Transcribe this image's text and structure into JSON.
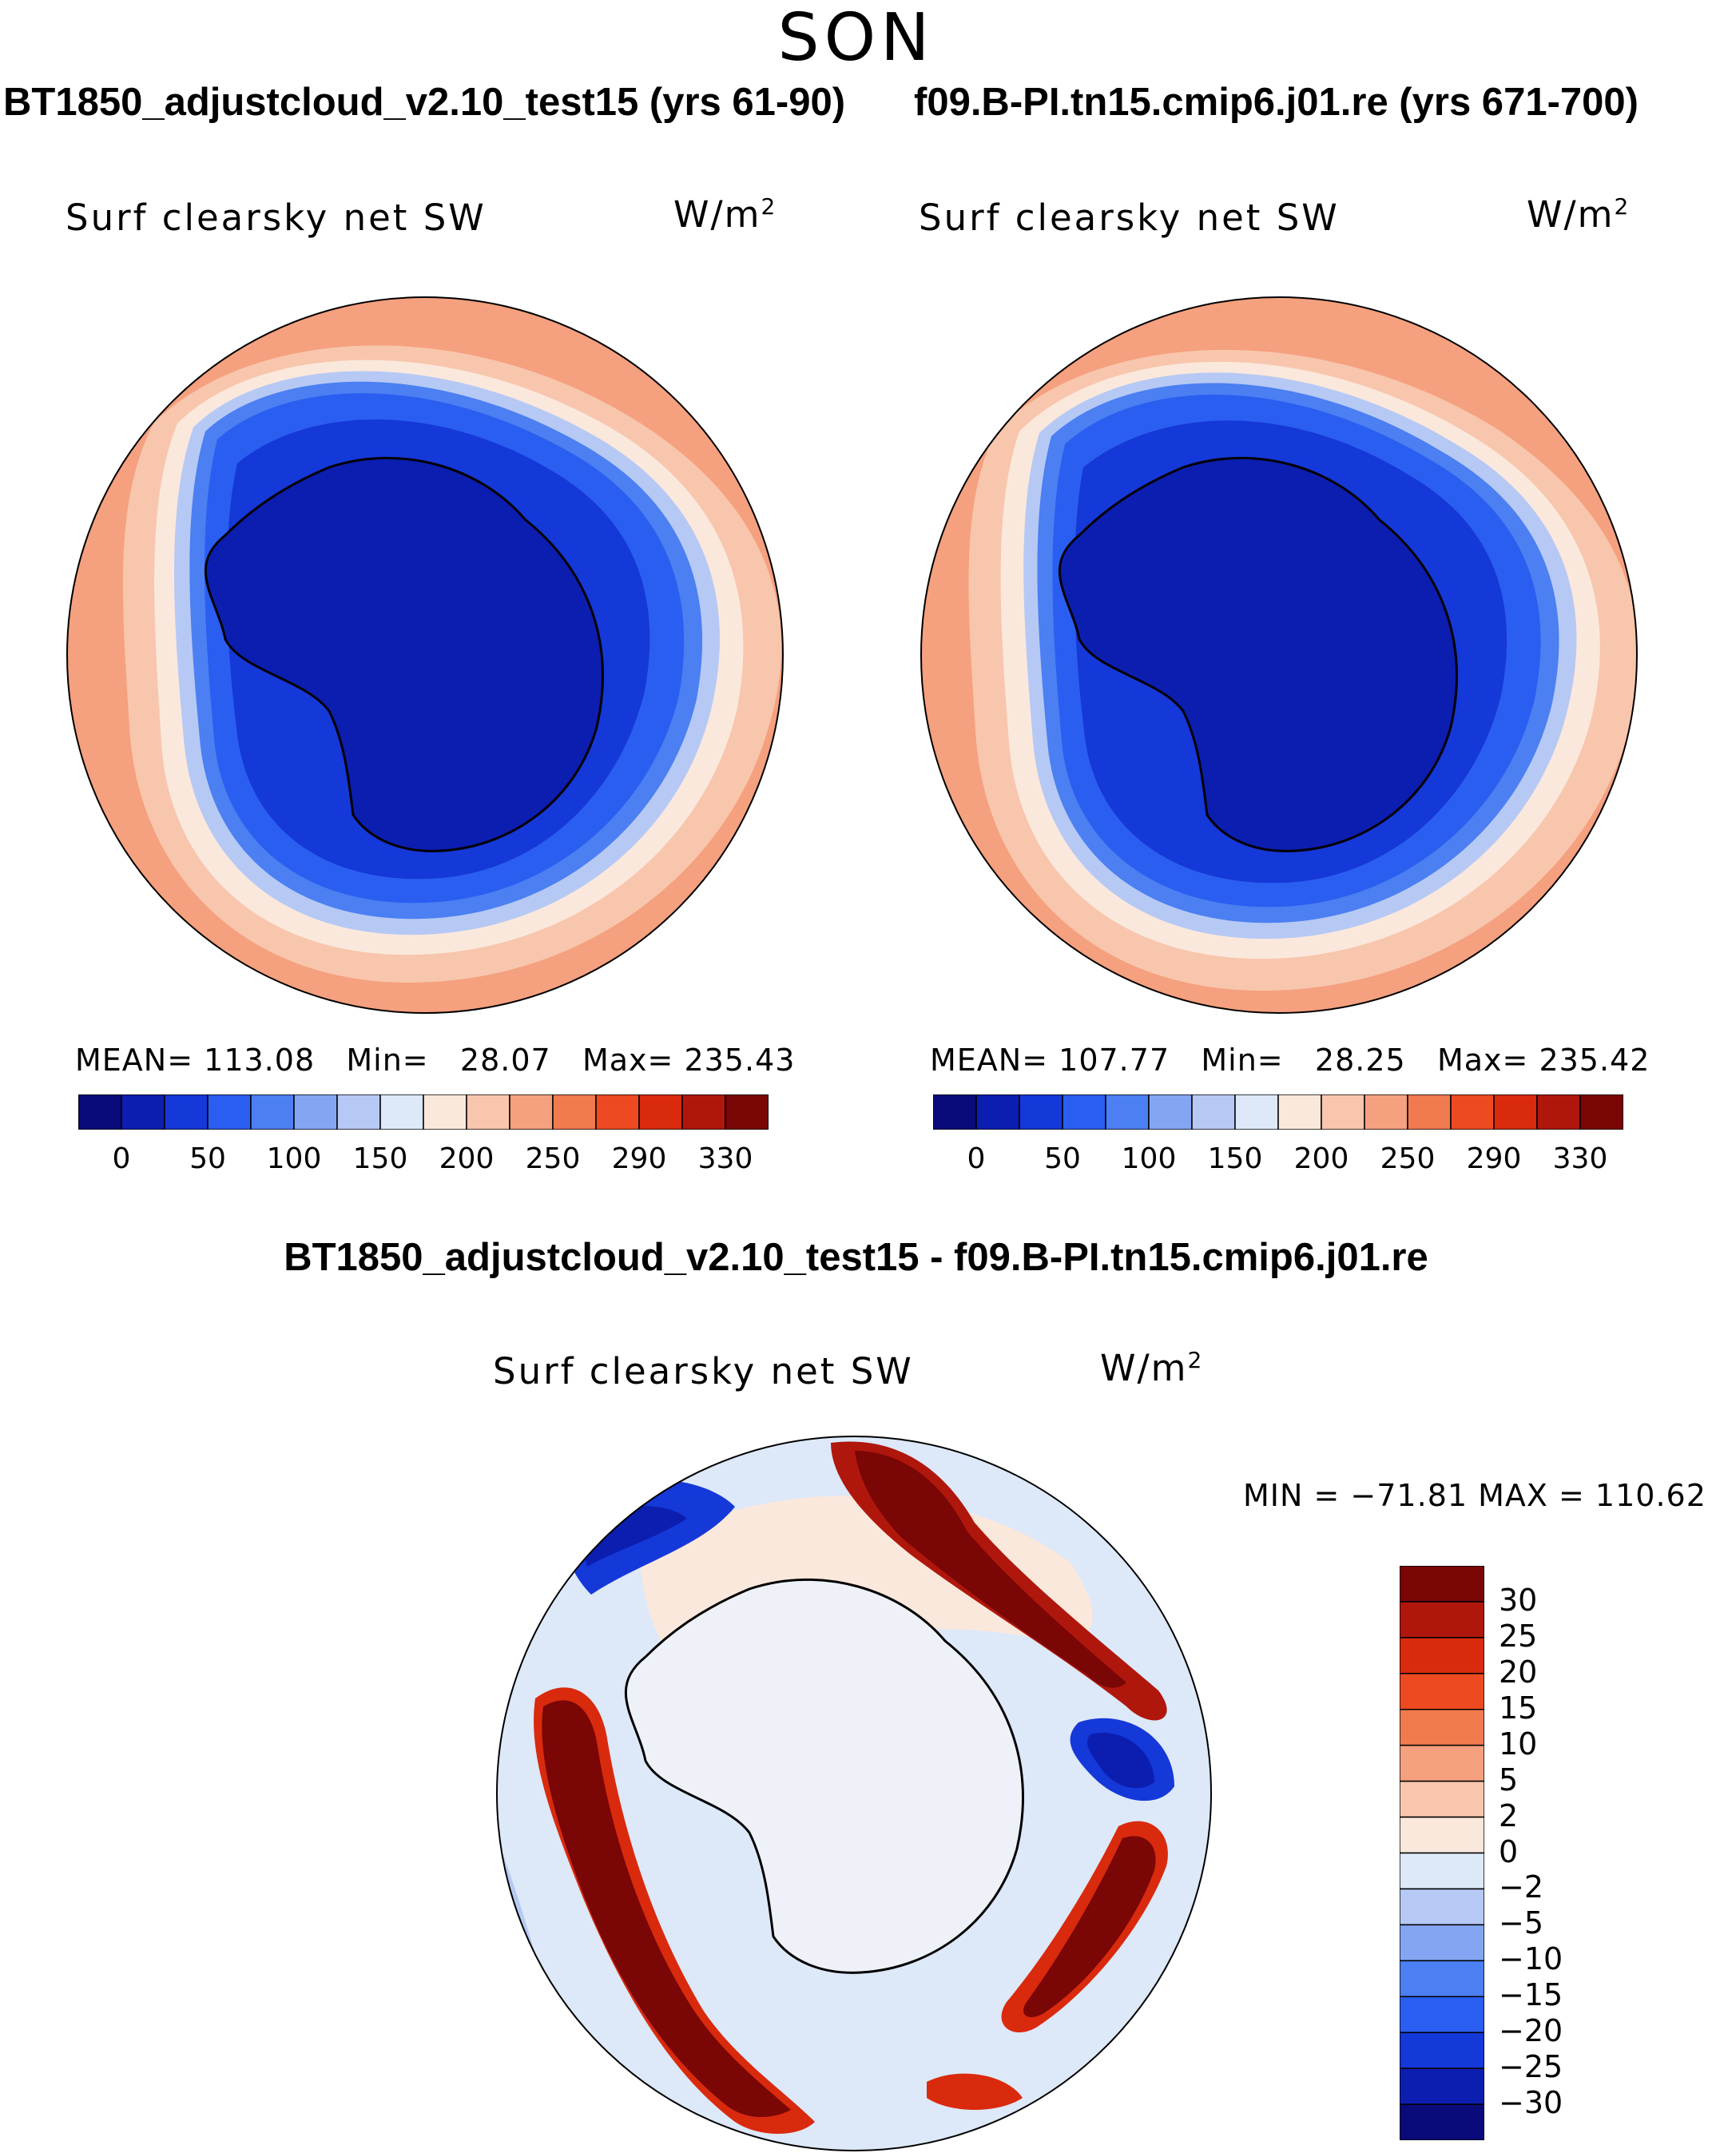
{
  "season": "SON",
  "panels": [
    {
      "case": "BT1850_adjustcloud_v2.10_test15 (yrs 61-90)",
      "variable": "Surf clearsky net SW",
      "units_base": "W/m",
      "units_exp": "2",
      "mean_label": "MEAN=",
      "mean": "113.08",
      "min_label": "Min=",
      "min": "28.07",
      "max_label": "Max=",
      "max": "235.43"
    },
    {
      "case": "f09.B-PI.tn15.cmip6.j01.re (yrs 671-700)",
      "variable": "Surf clearsky net SW",
      "units_base": "W/m",
      "units_exp": "2",
      "mean_label": "MEAN=",
      "mean": "107.77",
      "min_label": "Min=",
      "min": "28.25",
      "max_label": "Max=",
      "max": "235.42"
    }
  ],
  "colorbar": {
    "colors": [
      "#0a0a7a",
      "#0c1eb0",
      "#1538d8",
      "#2a5ef0",
      "#4b7ff2",
      "#84a6f2",
      "#b6c9f4",
      "#dde8f8",
      "#fbe8dc",
      "#f8c6ad",
      "#f5a07e",
      "#f17a4f",
      "#ed4a22",
      "#d92a0e",
      "#b0170c",
      "#7a0606"
    ],
    "tick_labels": [
      "0",
      "50",
      "100",
      "150",
      "200",
      "250",
      "290",
      "330"
    ],
    "values": [
      0,
      25,
      50,
      75,
      100,
      125,
      150,
      175,
      200,
      225,
      250,
      270,
      290,
      310,
      330
    ]
  },
  "difference": {
    "title": "BT1850_adjustcloud_v2.10_test15 - f09.B-PI.tn15.cmip6.j01.re",
    "variable": "Surf clearsky net SW",
    "units_base": "W/m",
    "units_exp": "2",
    "minmax_text": "MIN = −71.81  MAX = 110.62",
    "colorbar_colors": [
      "#7a0606",
      "#b0170c",
      "#d92a0e",
      "#ed4a22",
      "#f17a4f",
      "#f5a07e",
      "#f8c6ad",
      "#fbe8dc",
      "#dde8f8",
      "#b6c9f4",
      "#84a6f2",
      "#4b7ff2",
      "#2a5ef0",
      "#1538d8",
      "#0c1eb0",
      "#0a0a7a"
    ],
    "tick_labels": [
      "30",
      "25",
      "20",
      "15",
      "10",
      "5",
      "2",
      "0",
      "−2",
      "−5",
      "−10",
      "−15",
      "−20",
      "−25",
      "−30"
    ]
  }
}
